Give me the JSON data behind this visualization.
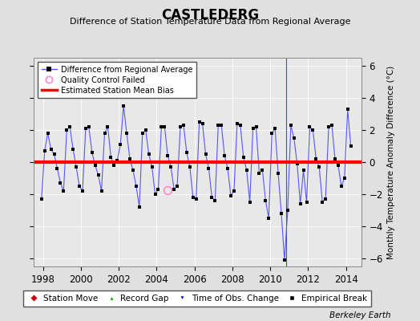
{
  "title": "CASTLEDERG",
  "subtitle": "Difference of Station Temperature Data from Regional Average",
  "ylabel": "Monthly Temperature Anomaly Difference (°C)",
  "bias": 0.0,
  "xlim": [
    1997.5,
    2014.8
  ],
  "ylim": [
    -6.5,
    6.5
  ],
  "yticks": [
    -6,
    -4,
    -2,
    0,
    2,
    4,
    6
  ],
  "xticks": [
    1998,
    2000,
    2002,
    2004,
    2006,
    2008,
    2010,
    2012,
    2014
  ],
  "bg_color": "#e8e8e8",
  "fig_color": "#e0e0e0",
  "line_color": "#5555ff",
  "marker_color": "#000000",
  "bias_color": "#ff0000",
  "watermark": "Berkeley Earth",
  "qc_failed_point": [
    2004.583,
    -1.75
  ],
  "time_of_obs_x": 2010.833,
  "data": [
    [
      1997.917,
      -2.3
    ],
    [
      1998.083,
      0.7
    ],
    [
      1998.25,
      1.8
    ],
    [
      1998.417,
      0.8
    ],
    [
      1998.583,
      0.5
    ],
    [
      1998.75,
      -0.4
    ],
    [
      1998.917,
      -1.3
    ],
    [
      1999.083,
      -1.8
    ],
    [
      1999.25,
      2.0
    ],
    [
      1999.417,
      2.2
    ],
    [
      1999.583,
      0.8
    ],
    [
      1999.75,
      -0.3
    ],
    [
      1999.917,
      -1.5
    ],
    [
      2000.083,
      -1.8
    ],
    [
      2000.25,
      2.1
    ],
    [
      2000.417,
      2.2
    ],
    [
      2000.583,
      0.6
    ],
    [
      2000.75,
      -0.2
    ],
    [
      2000.917,
      -0.8
    ],
    [
      2001.083,
      -1.8
    ],
    [
      2001.25,
      1.8
    ],
    [
      2001.417,
      2.2
    ],
    [
      2001.583,
      0.3
    ],
    [
      2001.75,
      -0.2
    ],
    [
      2001.917,
      0.1
    ],
    [
      2002.083,
      1.1
    ],
    [
      2002.25,
      3.5
    ],
    [
      2002.417,
      1.8
    ],
    [
      2002.583,
      0.2
    ],
    [
      2002.75,
      -0.5
    ],
    [
      2002.917,
      -1.5
    ],
    [
      2003.083,
      -2.8
    ],
    [
      2003.25,
      1.8
    ],
    [
      2003.417,
      2.0
    ],
    [
      2003.583,
      0.5
    ],
    [
      2003.75,
      -0.3
    ],
    [
      2003.917,
      -2.0
    ],
    [
      2004.083,
      -1.7
    ],
    [
      2004.25,
      2.2
    ],
    [
      2004.417,
      2.2
    ],
    [
      2004.583,
      0.4
    ],
    [
      2004.75,
      -0.3
    ],
    [
      2004.917,
      -1.7
    ],
    [
      2005.083,
      -1.5
    ],
    [
      2005.25,
      2.2
    ],
    [
      2005.417,
      2.3
    ],
    [
      2005.583,
      0.6
    ],
    [
      2005.75,
      -0.3
    ],
    [
      2005.917,
      -2.2
    ],
    [
      2006.083,
      -2.3
    ],
    [
      2006.25,
      2.5
    ],
    [
      2006.417,
      2.4
    ],
    [
      2006.583,
      0.5
    ],
    [
      2006.75,
      -0.4
    ],
    [
      2006.917,
      -2.2
    ],
    [
      2007.083,
      -2.4
    ],
    [
      2007.25,
      2.3
    ],
    [
      2007.417,
      2.3
    ],
    [
      2007.583,
      0.4
    ],
    [
      2007.75,
      -0.4
    ],
    [
      2007.917,
      -2.1
    ],
    [
      2008.083,
      -1.8
    ],
    [
      2008.25,
      2.4
    ],
    [
      2008.417,
      2.3
    ],
    [
      2008.583,
      0.3
    ],
    [
      2008.75,
      -0.5
    ],
    [
      2008.917,
      -2.5
    ],
    [
      2009.083,
      2.1
    ],
    [
      2009.25,
      2.2
    ],
    [
      2009.417,
      -0.7
    ],
    [
      2009.583,
      -0.5
    ],
    [
      2009.75,
      -2.4
    ],
    [
      2009.917,
      -3.5
    ],
    [
      2010.083,
      1.8
    ],
    [
      2010.25,
      2.1
    ],
    [
      2010.417,
      -0.7
    ],
    [
      2010.583,
      -3.2
    ],
    [
      2010.75,
      -6.1
    ],
    [
      2010.917,
      -3.0
    ],
    [
      2011.083,
      2.3
    ],
    [
      2011.25,
      1.5
    ],
    [
      2011.417,
      -0.1
    ],
    [
      2011.583,
      -2.6
    ],
    [
      2011.75,
      -0.5
    ],
    [
      2011.917,
      -2.5
    ],
    [
      2012.083,
      2.2
    ],
    [
      2012.25,
      2.0
    ],
    [
      2012.417,
      0.2
    ],
    [
      2012.583,
      -0.3
    ],
    [
      2012.75,
      -2.5
    ],
    [
      2012.917,
      -2.3
    ],
    [
      2013.083,
      2.2
    ],
    [
      2013.25,
      2.3
    ],
    [
      2013.417,
      0.2
    ],
    [
      2013.583,
      -0.2
    ],
    [
      2013.75,
      -1.5
    ],
    [
      2013.917,
      -1.0
    ],
    [
      2014.083,
      3.3
    ],
    [
      2014.25,
      1.0
    ]
  ]
}
